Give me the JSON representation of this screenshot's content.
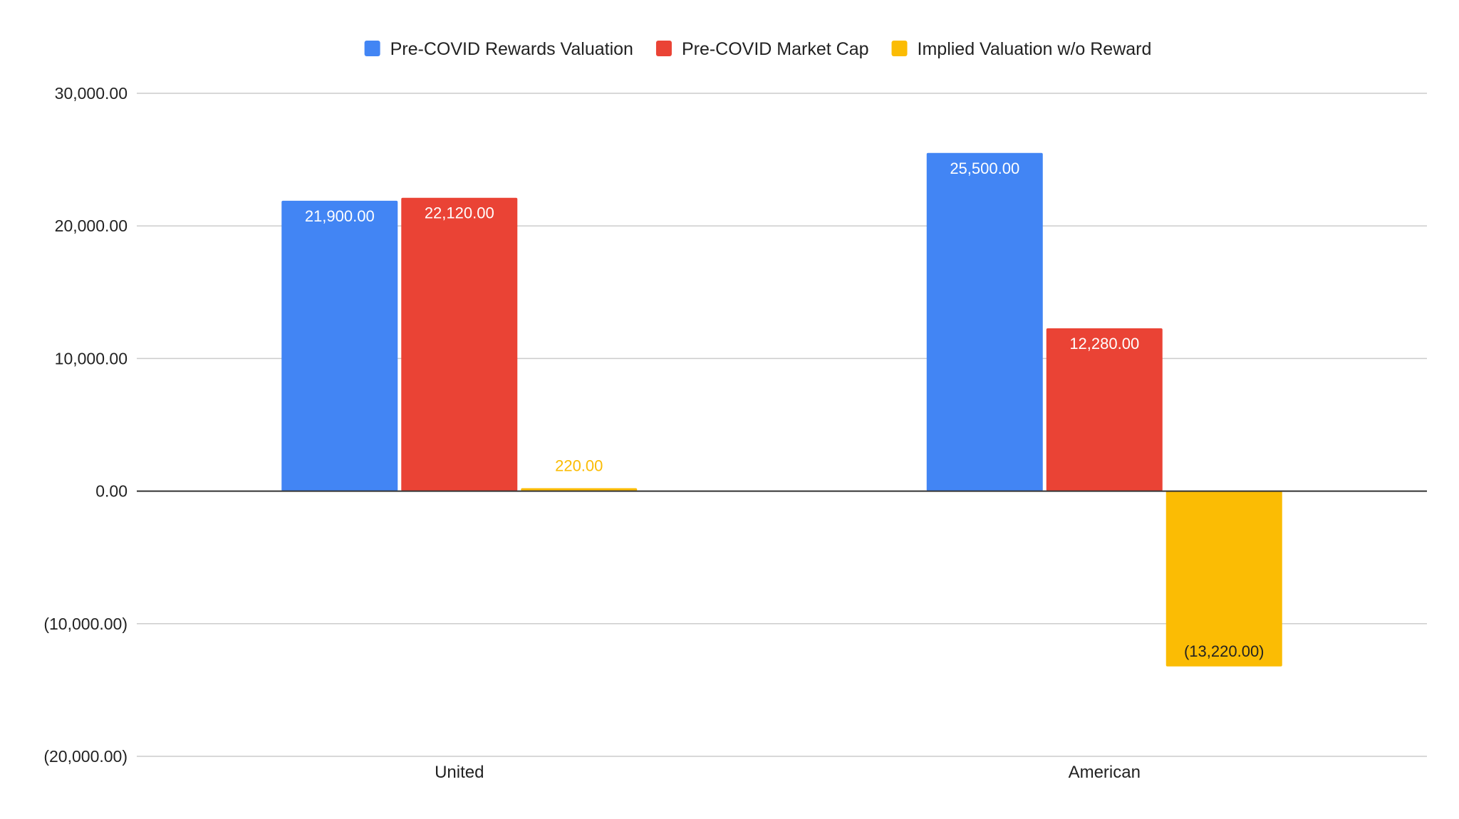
{
  "chart_data": {
    "type": "bar",
    "categories": [
      "United",
      "American"
    ],
    "series": [
      {
        "name": "Pre-COVID Rewards Valuation",
        "color": "#4285F4",
        "values": [
          21900,
          25500
        ],
        "labels": [
          "21,900.00",
          "25,500.00"
        ]
      },
      {
        "name": "Pre-COVID Market Cap",
        "color": "#EA4335",
        "values": [
          22120,
          12280
        ],
        "labels": [
          "22,120.00",
          "12,280.00"
        ]
      },
      {
        "name": "Implied Valuation w/o Reward",
        "color": "#FBBC04",
        "values": [
          220,
          -13220
        ],
        "labels": [
          "220.00",
          "(13,220.00)"
        ]
      }
    ],
    "ylim": [
      -20000,
      30000
    ],
    "yticks": [
      {
        "value": 30000,
        "label": "30,000.00"
      },
      {
        "value": 20000,
        "label": "20,000.00"
      },
      {
        "value": 10000,
        "label": "10,000.00"
      },
      {
        "value": 0,
        "label": "0.00"
      },
      {
        "value": -10000,
        "label": "(10,000.00)"
      },
      {
        "value": -20000,
        "label": "(20,000.00)"
      }
    ],
    "title": "",
    "xlabel": "",
    "ylabel": "",
    "grid": true,
    "legend_position": "top-center"
  }
}
